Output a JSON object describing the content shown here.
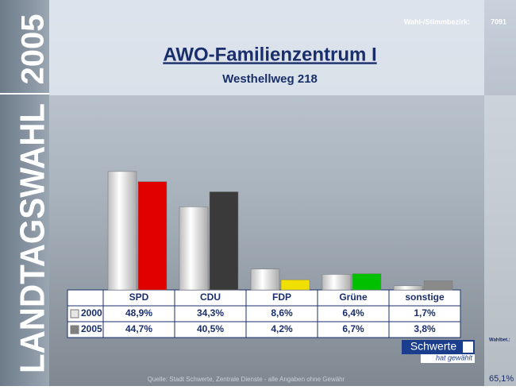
{
  "header": {
    "year": "2005",
    "election": "LANDTAGSWAHL",
    "district_label": "Wahl-/Stimmbezirk:",
    "district": "7091"
  },
  "chart_data": {
    "type": "bar",
    "title": "AWO-Familienzentrum I",
    "subtitle": "Westhellweg 218",
    "categories": [
      "SPD",
      "CDU",
      "FDP",
      "Grüne",
      "sonstige"
    ],
    "series": [
      {
        "name": "2000",
        "color": "#e6e6e6",
        "values": [
          48.9,
          34.3,
          8.6,
          6.4,
          1.7
        ],
        "value_labels": [
          "48,9%",
          "34,3%",
          "8,6%",
          "6,4%",
          "1,7%"
        ]
      },
      {
        "name": "2005",
        "color": "#808080",
        "colors": [
          "#e00000",
          "#3a3a3a",
          "#f0e000",
          "#00c000",
          "#8a8a8a"
        ],
        "values": [
          44.7,
          40.5,
          4.2,
          6.7,
          3.8
        ],
        "value_labels": [
          "44,7%",
          "40,5%",
          "4,2%",
          "6,7%",
          "3,8%"
        ]
      }
    ]
  },
  "footer": {
    "source": "Quelle: Stadt Schwerte, Zentrale Dienste - alle Angaben ohne Gewähr",
    "city": "Schwerte",
    "city_note": "hat gewählt",
    "turnout_label": "Wahlbet.:",
    "turnout": "65,1%"
  }
}
